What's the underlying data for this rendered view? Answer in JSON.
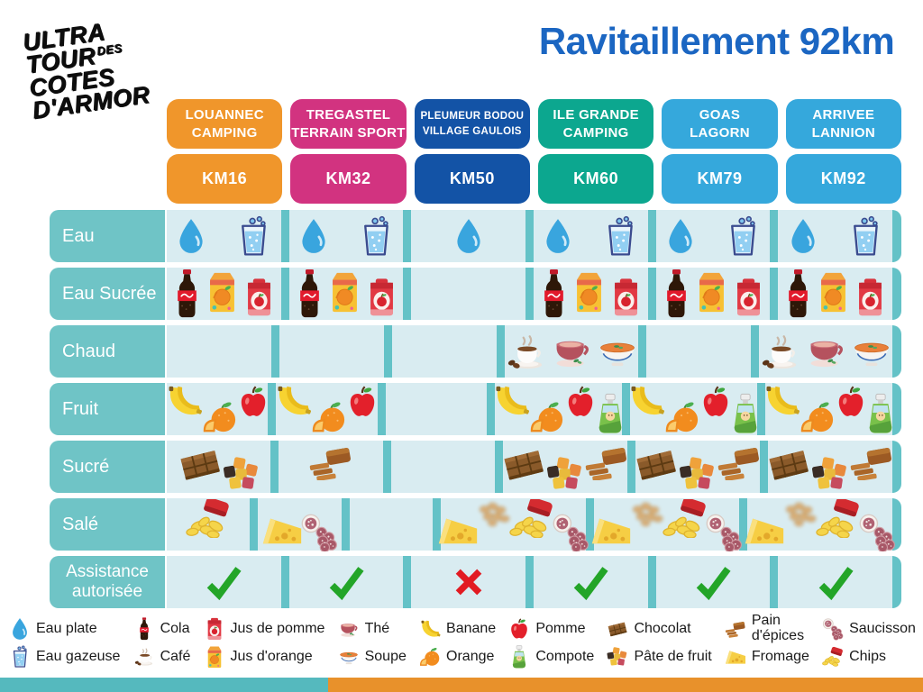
{
  "title": "Ravitaillement 92km",
  "logo": {
    "line1": "ULTRA",
    "line2": "TOUR",
    "line2_sup": "DES",
    "line3": "COTES",
    "line4": "D'ARMOR"
  },
  "colors": {
    "title": "#1B66C2",
    "row_label": "#6FC4C6",
    "cell_bg": "#D9ECF1",
    "divider": "#64C2C7",
    "check": "#23A528",
    "cross": "#E21B22",
    "footer_left": "#55B9BE",
    "footer_right": "#E8912B"
  },
  "stations": [
    {
      "name_lines": [
        "LOUANNEC",
        "CAMPING"
      ],
      "km": "KM16",
      "color": "#F0962B"
    },
    {
      "name_lines": [
        "TREGASTEL",
        "TERRAIN SPORT"
      ],
      "km": "KM32",
      "color": "#D23380"
    },
    {
      "name_lines": [
        "PLEUMEUR BODOU",
        "VILLAGE GAULOIS"
      ],
      "km": "KM50",
      "color": "#1353A6"
    },
    {
      "name_lines": [
        "ILE GRANDE",
        "CAMPING"
      ],
      "km": "KM60",
      "color": "#0CA78F"
    },
    {
      "name_lines": [
        "GOAS",
        "LAGORN"
      ],
      "km": "KM79",
      "color": "#35A8DC"
    },
    {
      "name_lines": [
        "ARRIVEE",
        "LANNION"
      ],
      "km": "KM92",
      "color": "#35A8DC"
    }
  ],
  "rows": [
    {
      "key": "eau",
      "label": "Eau",
      "cells": [
        [
          "water-drop",
          "sparkling-water"
        ],
        [
          "water-drop",
          "sparkling-water"
        ],
        [
          "water-drop"
        ],
        [
          "water-drop",
          "sparkling-water"
        ],
        [
          "water-drop",
          "sparkling-water"
        ],
        [
          "water-drop",
          "sparkling-water"
        ]
      ]
    },
    {
      "key": "eau-sucree",
      "label": "Eau Sucrée",
      "cells": [
        [
          "cola",
          "orange-juice",
          "apple-juice"
        ],
        [
          "cola",
          "orange-juice",
          "apple-juice"
        ],
        [],
        [
          "cola",
          "orange-juice",
          "apple-juice"
        ],
        [
          "cola",
          "orange-juice",
          "apple-juice"
        ],
        [
          "cola",
          "orange-juice",
          "apple-juice"
        ]
      ]
    },
    {
      "key": "chaud",
      "label": "Chaud",
      "cells": [
        [],
        [],
        [],
        [
          "coffee",
          "tea",
          "soup"
        ],
        [],
        [
          "coffee",
          "tea",
          "soup"
        ]
      ]
    },
    {
      "key": "fruit",
      "label": "Fruit",
      "cells": [
        [
          "banana",
          "orange",
          "apple"
        ],
        [
          "banana",
          "orange",
          "apple"
        ],
        [],
        [
          "banana",
          "orange",
          "apple",
          "compote"
        ],
        [
          "banana",
          "orange",
          "apple",
          "compote"
        ],
        [
          "banana",
          "orange",
          "apple",
          "compote"
        ]
      ]
    },
    {
      "key": "sucre",
      "label": "Sucré",
      "cells": [
        [
          "chocolate",
          "fruit-jelly"
        ],
        [
          "gingerbread"
        ],
        [],
        [
          "chocolate",
          "fruit-jelly",
          "gingerbread"
        ],
        [
          "chocolate",
          "fruit-jelly",
          "gingerbread"
        ],
        [
          "chocolate",
          "fruit-jelly",
          "gingerbread"
        ]
      ]
    },
    {
      "key": "sale",
      "label": "Salé",
      "cells": [
        [
          "chips"
        ],
        [
          "cheese",
          "saucisson"
        ],
        [],
        [
          "cheese",
          "peanuts-blurred",
          "chips",
          "saucisson"
        ],
        [
          "cheese",
          "peanuts-blurred",
          "chips",
          "saucisson"
        ],
        [
          "cheese",
          "peanuts-blurred",
          "chips",
          "saucisson"
        ]
      ]
    },
    {
      "key": "assistance",
      "label": "Assistance autorisée",
      "cells": [
        [
          "check"
        ],
        [
          "check"
        ],
        [
          "cross"
        ],
        [
          "check"
        ],
        [
          "check"
        ],
        [
          "check"
        ]
      ]
    }
  ],
  "legend": [
    [
      {
        "icon": "water-drop",
        "label": "Eau plate"
      },
      {
        "icon": "sparkling-water",
        "label": "Eau gazeuse"
      }
    ],
    [
      {
        "icon": "cola",
        "label": "Cola"
      },
      {
        "icon": "coffee",
        "label": "Café"
      }
    ],
    [
      {
        "icon": "apple-juice",
        "label": "Jus de pomme"
      },
      {
        "icon": "orange-juice",
        "label": "Jus d'orange"
      }
    ],
    [
      {
        "icon": "tea",
        "label": "Thé"
      },
      {
        "icon": "soup",
        "label": "Soupe"
      }
    ],
    [
      {
        "icon": "banana",
        "label": "Banane"
      },
      {
        "icon": "orange",
        "label": "Orange"
      }
    ],
    [
      {
        "icon": "apple",
        "label": "Pomme"
      },
      {
        "icon": "compote",
        "label": "Compote"
      }
    ],
    [
      {
        "icon": "chocolate",
        "label": "Chocolat"
      },
      {
        "icon": "fruit-jelly",
        "label": "Pâte de fruit"
      }
    ],
    [
      {
        "icon": "gingerbread",
        "label": "Pain d'épices",
        "two_line": true
      },
      {
        "icon": "cheese",
        "label": "Fromage"
      }
    ],
    [
      {
        "icon": "saucisson",
        "label": "Saucisson"
      },
      {
        "icon": "chips",
        "label": "Chips"
      }
    ]
  ]
}
